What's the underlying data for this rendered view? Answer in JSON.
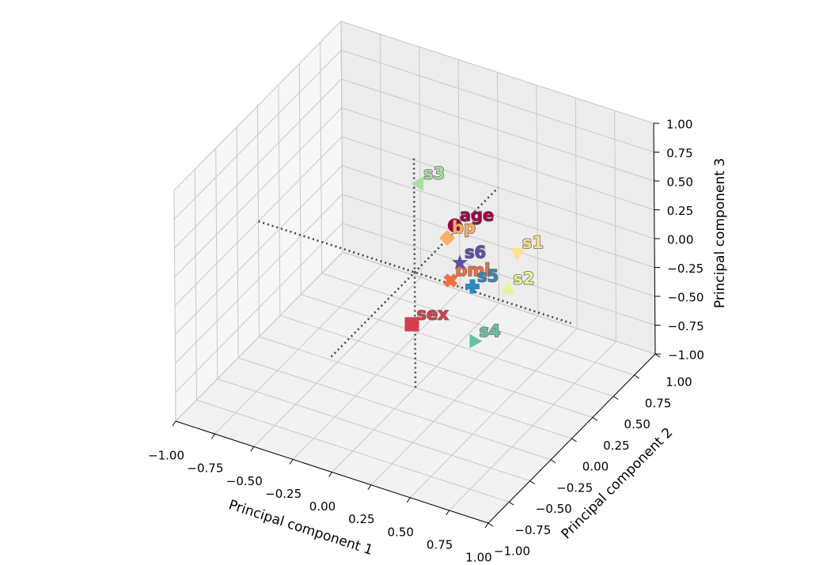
{
  "chart_data": {
    "type": "scatter3d",
    "xlabel": "Principal component 1",
    "ylabel": "Principal component 2",
    "zlabel": "Principal component 3",
    "xlim": [
      -1,
      1
    ],
    "ylim": [
      -1,
      1
    ],
    "zlim": [
      -1,
      1
    ],
    "xticks": [
      {
        "value": -1,
        "label": "−1.00"
      },
      {
        "value": -0.75,
        "label": "−0.75"
      },
      {
        "value": -0.5,
        "label": "−0.50"
      },
      {
        "value": -0.25,
        "label": "−0.25"
      },
      {
        "value": 0,
        "label": "0.00"
      },
      {
        "value": 0.25,
        "label": "0.25"
      },
      {
        "value": 0.5,
        "label": "0.50"
      },
      {
        "value": 0.75,
        "label": "0.75"
      },
      {
        "value": 1,
        "label": "1.00"
      }
    ],
    "yticks": [
      {
        "value": -1,
        "label": "−1.00"
      },
      {
        "value": -0.75,
        "label": "−0.75"
      },
      {
        "value": -0.5,
        "label": "−0.50"
      },
      {
        "value": -0.25,
        "label": "−0.25"
      },
      {
        "value": 0,
        "label": "0.00"
      },
      {
        "value": 0.25,
        "label": "0.25"
      },
      {
        "value": 0.5,
        "label": "0.50"
      },
      {
        "value": 0.75,
        "label": "0.75"
      },
      {
        "value": 1,
        "label": "1.00"
      }
    ],
    "zticks": [
      {
        "value": -1,
        "label": "−1.00"
      },
      {
        "value": -0.75,
        "label": "−0.75"
      },
      {
        "value": -0.5,
        "label": "−0.50"
      },
      {
        "value": -0.25,
        "label": "−0.25"
      },
      {
        "value": 0,
        "label": "0.00"
      },
      {
        "value": 0.25,
        "label": "0.25"
      },
      {
        "value": 0.5,
        "label": "0.50"
      },
      {
        "value": 0.75,
        "label": "0.75"
      },
      {
        "value": 1,
        "label": "1.00"
      }
    ],
    "grid": true,
    "series": [
      {
        "name": "age",
        "color": "#9e0142",
        "marker": "o",
        "x": 0.26,
        "y": 0,
        "z": 0.52
      },
      {
        "name": "sex",
        "color": "#d53e4f",
        "marker": "s",
        "x": -0.02,
        "y": 0,
        "z": -0.46
      },
      {
        "name": "bmi",
        "color": "#f46d43",
        "marker": "X",
        "x": 0.23,
        "y": 0,
        "z": 0.03
      },
      {
        "name": "bp",
        "color": "#fdae61",
        "marker": "D",
        "x": 0.21,
        "y": 0,
        "z": 0.39
      },
      {
        "name": "s1",
        "color": "#fee08b",
        "marker": "v",
        "x": 0.66,
        "y": 0,
        "z": 0.46
      },
      {
        "name": "s2",
        "color": "#e6f598",
        "marker": "^",
        "x": 0.6,
        "y": 0,
        "z": 0.12
      },
      {
        "name": "s3",
        "color": "#abdda4",
        "marker": "<",
        "x": 0.03,
        "y": 0,
        "z": 0.78
      },
      {
        "name": "s4",
        "color": "#66c2a5",
        "marker": ">",
        "x": 0.38,
        "y": 0,
        "z": -0.43
      },
      {
        "name": "s5",
        "color": "#3288bd",
        "marker": "P",
        "x": 0.37,
        "y": 0,
        "z": 0.04
      },
      {
        "name": "s6",
        "color": "#5e4fa2",
        "marker": "*",
        "x": 0.29,
        "y": 0,
        "z": 0.21
      }
    ]
  }
}
